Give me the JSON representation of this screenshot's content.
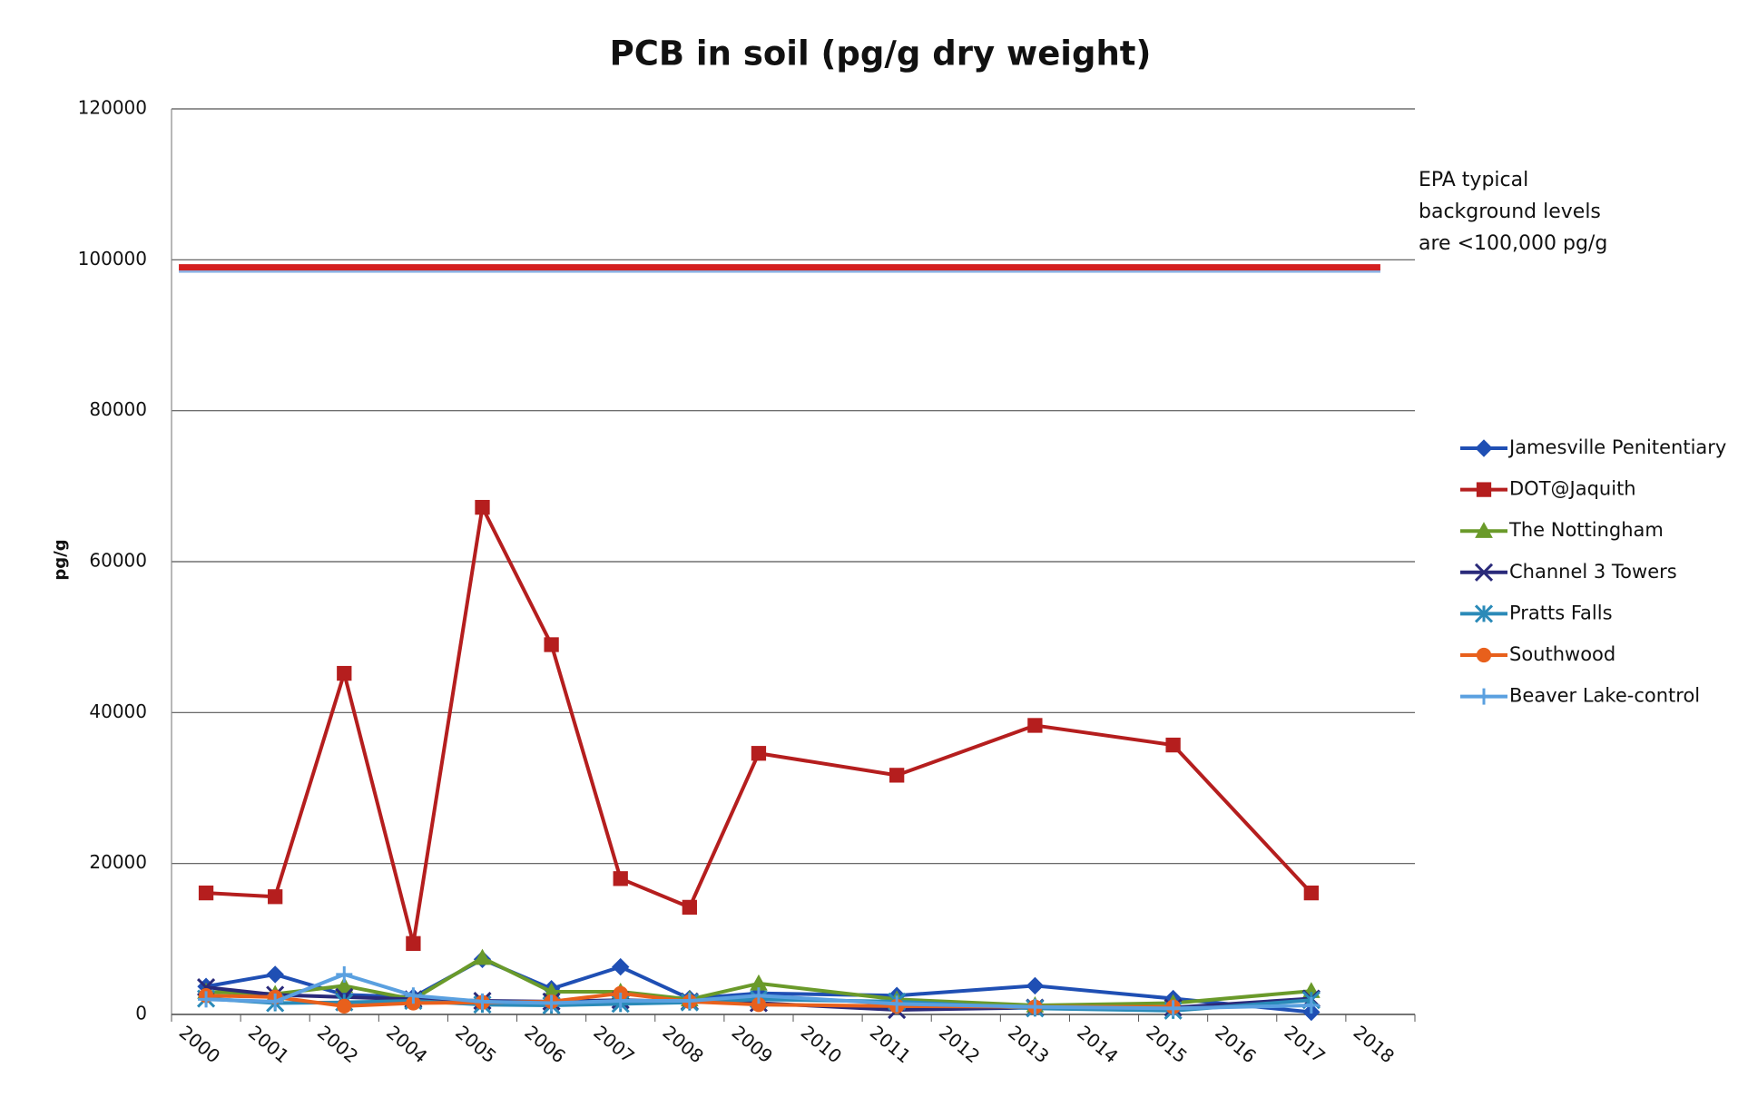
{
  "chart_data": {
    "type": "line",
    "title": "PCB in soil  (pg/g dry weight)",
    "y_label": "pg/g",
    "categories": [
      "2000",
      "2001",
      "2002",
      "2004",
      "2005",
      "2006",
      "2007",
      "2008",
      "2009",
      "2010",
      "2011",
      "2012",
      "2013",
      "2014",
      "2015",
      "2016",
      "2017",
      "2018"
    ],
    "ylim": [
      0,
      120000
    ],
    "yticks": [
      0,
      20000,
      40000,
      60000,
      80000,
      100000,
      120000
    ],
    "grid": true,
    "legend": "right",
    "span_gaps": true,
    "reference_line": {
      "value": 99000,
      "color": "#d42020"
    },
    "annotation": [
      "EPA typical",
      "background levels",
      "are <100,000 pg/g"
    ],
    "series": [
      {
        "name": "Jamesville Penitentiary",
        "color": "#1f4fb4",
        "marker": "diamond",
        "values": [
          3700,
          5300,
          2600,
          2300,
          7300,
          3400,
          6300,
          2100,
          2800,
          null,
          2500,
          null,
          3800,
          null,
          2100,
          null,
          300,
          null
        ]
      },
      {
        "name": "DOT@Jaquith",
        "color": "#b51e1e",
        "marker": "square",
        "values": [
          16100,
          15600,
          45200,
          9400,
          67200,
          49000,
          18000,
          14200,
          34600,
          null,
          31700,
          null,
          38300,
          null,
          35700,
          null,
          16100,
          null
        ]
      },
      {
        "name": "The Nottingham",
        "color": "#6a9a2a",
        "marker": "triangle",
        "values": [
          3000,
          2700,
          3800,
          2000,
          7500,
          3000,
          3000,
          2000,
          4100,
          null,
          2000,
          null,
          1200,
          null,
          1500,
          null,
          3100,
          null
        ]
      },
      {
        "name": "Channel 3 Towers",
        "color": "#2a2a7a",
        "marker": "x",
        "values": [
          3600,
          2600,
          2300,
          2000,
          1800,
          1700,
          1900,
          1700,
          1500,
          null,
          600,
          null,
          900,
          null,
          900,
          null,
          2100,
          null
        ]
      },
      {
        "name": "Pratts Falls",
        "color": "#2a8ab8",
        "marker": "asterisk",
        "values": [
          2100,
          1500,
          1600,
          1800,
          1300,
          1200,
          1400,
          1600,
          2000,
          null,
          1700,
          null,
          800,
          null,
          500,
          null,
          1900,
          null
        ]
      },
      {
        "name": "Southwood",
        "color": "#e8601c",
        "marker": "circle",
        "values": [
          2500,
          2300,
          1100,
          1500,
          1600,
          1700,
          2800,
          1700,
          1300,
          null,
          1100,
          null,
          1000,
          null,
          1000,
          null,
          null,
          null
        ]
      },
      {
        "name": "Beaver Lake-control",
        "color": "#5aa0e0",
        "marker": "plus",
        "values": [
          2000,
          1700,
          5300,
          2500,
          1700,
          1500,
          1800,
          1800,
          2500,
          null,
          1400,
          null,
          1000,
          null,
          800,
          null,
          1200,
          null
        ]
      }
    ]
  }
}
